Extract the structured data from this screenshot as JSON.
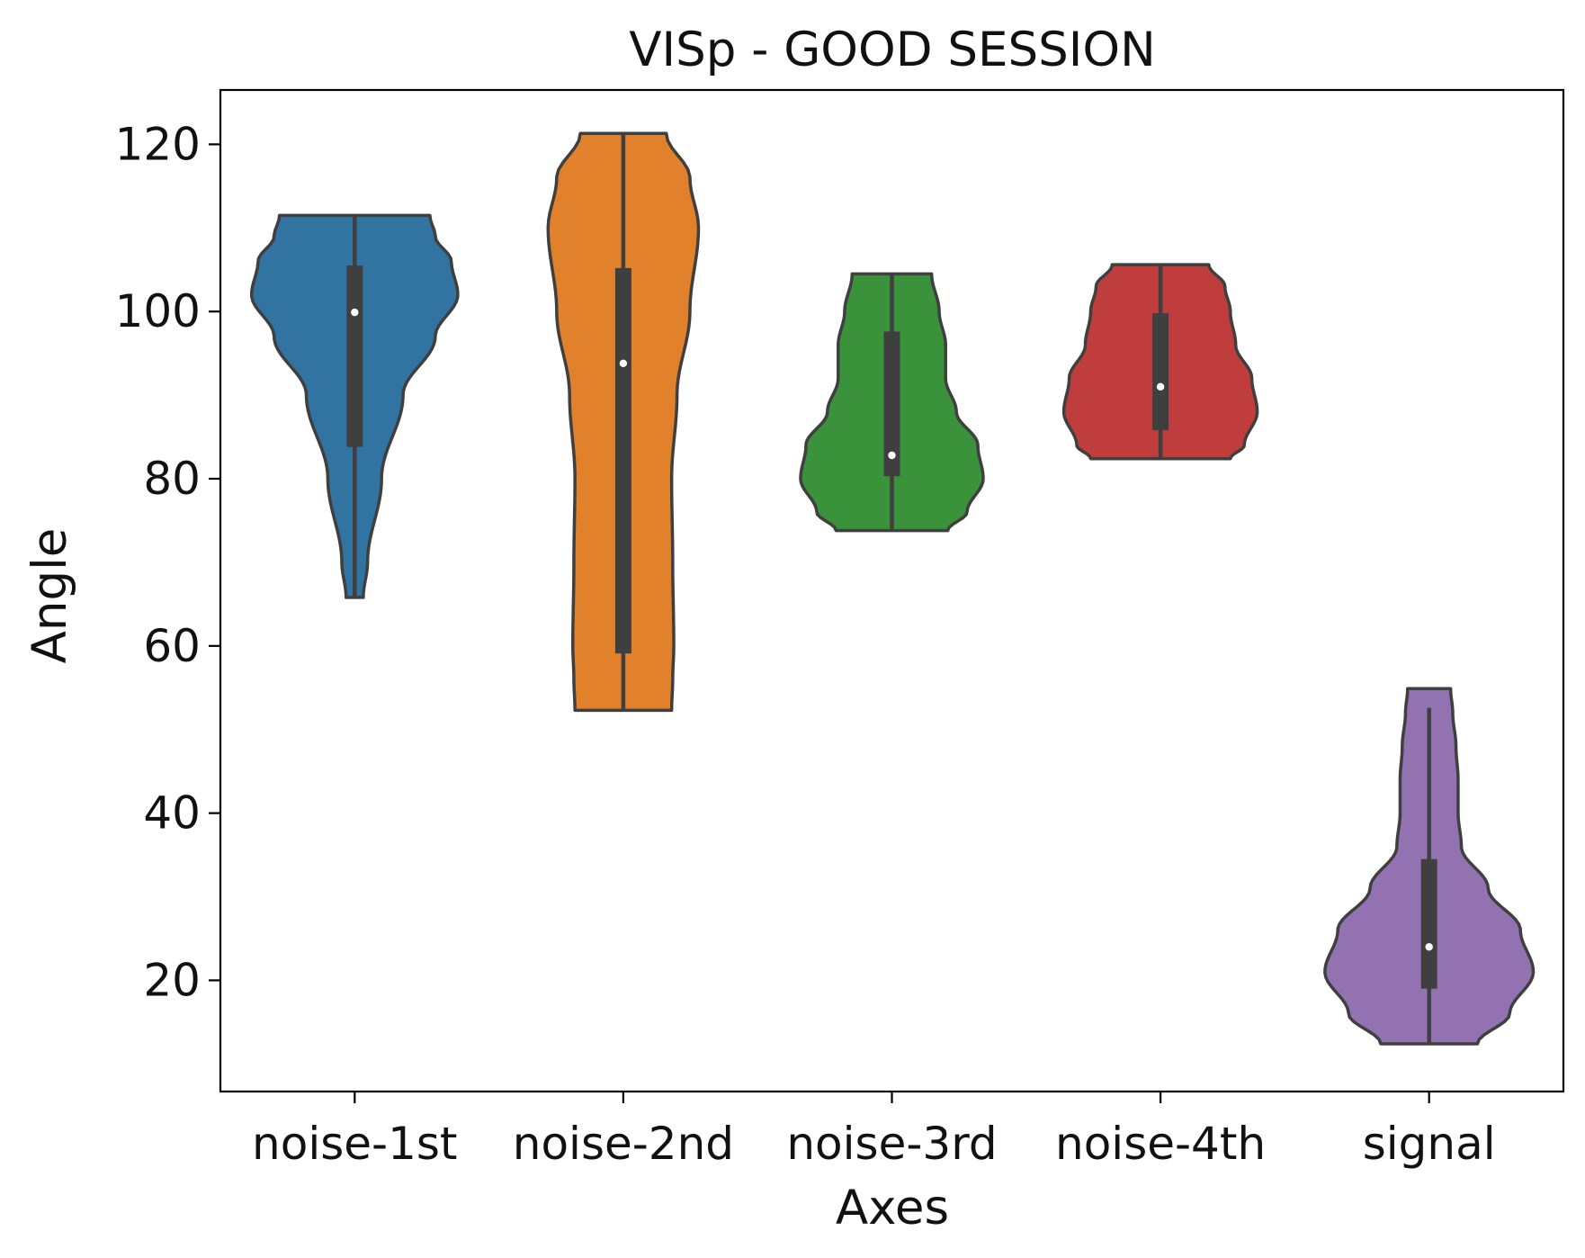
{
  "chart_data": {
    "type": "violin",
    "title": "VISp - GOOD SESSION",
    "xlabel": "Axes",
    "ylabel": "Angle",
    "ylim": [
      6.7,
      126.5
    ],
    "yticks": [
      20,
      40,
      60,
      80,
      100,
      120
    ],
    "grid": false,
    "categories": [
      "noise-1st",
      "noise-2nd",
      "noise-3rd",
      "noise-4th",
      "signal"
    ],
    "series": [
      {
        "category": "noise-1st",
        "color": "#3274a1",
        "min": 65.8,
        "max": 111.5,
        "q1": 83.8,
        "median": 99.9,
        "q3": 105.5,
        "whisker_low": 65.8,
        "whisker_high": 111.5,
        "density": [
          [
            65.8,
            0.08
          ],
          [
            70,
            0.12
          ],
          [
            80,
            0.25
          ],
          [
            90,
            0.45
          ],
          [
            97,
            0.75
          ],
          [
            102,
            0.96
          ],
          [
            106,
            0.9
          ],
          [
            109,
            0.75
          ],
          [
            111.5,
            0.7
          ]
        ]
      },
      {
        "category": "noise-2nd",
        "color": "#e1812c",
        "min": 52.3,
        "max": 121.3,
        "q1": 59.1,
        "median": 93.8,
        "q3": 105.2,
        "whisker_low": 52.3,
        "whisker_high": 121.3,
        "density": [
          [
            52.3,
            0.45
          ],
          [
            56,
            0.46
          ],
          [
            60,
            0.47
          ],
          [
            70,
            0.46
          ],
          [
            80,
            0.45
          ],
          [
            90,
            0.5
          ],
          [
            100,
            0.62
          ],
          [
            110,
            0.7
          ],
          [
            116,
            0.62
          ],
          [
            121.3,
            0.4
          ]
        ]
      },
      {
        "category": "noise-3rd",
        "color": "#3a923a",
        "min": 73.8,
        "max": 104.5,
        "q1": 80.3,
        "median": 82.8,
        "q3": 97.6,
        "whisker_low": 73.8,
        "whisker_high": 104.5,
        "density": [
          [
            73.8,
            0.52
          ],
          [
            76,
            0.7
          ],
          [
            80,
            0.85
          ],
          [
            84,
            0.8
          ],
          [
            88,
            0.6
          ],
          [
            92,
            0.5
          ],
          [
            96,
            0.5
          ],
          [
            100,
            0.44
          ],
          [
            104.5,
            0.37
          ]
        ]
      },
      {
        "category": "noise-4th",
        "color": "#c03d3e",
        "min": 82.4,
        "max": 105.6,
        "q1": 85.8,
        "median": 91.0,
        "q3": 99.8,
        "whisker_low": 82.4,
        "whisker_high": 105.6,
        "density": [
          [
            82.4,
            0.65
          ],
          [
            84,
            0.78
          ],
          [
            88,
            0.9
          ],
          [
            92,
            0.85
          ],
          [
            96,
            0.7
          ],
          [
            100,
            0.65
          ],
          [
            103,
            0.6
          ],
          [
            105.6,
            0.45
          ]
        ]
      },
      {
        "category": "signal",
        "color": "#9372b2",
        "min": 12.4,
        "max": 54.9,
        "q1": 19.0,
        "median": 24.0,
        "q3": 34.5,
        "whisker_low": 12.4,
        "whisker_high": 52.6,
        "density": [
          [
            12.4,
            0.45
          ],
          [
            16,
            0.75
          ],
          [
            21,
            0.97
          ],
          [
            26,
            0.85
          ],
          [
            31,
            0.55
          ],
          [
            36,
            0.3
          ],
          [
            40,
            0.27
          ],
          [
            44,
            0.27
          ],
          [
            48,
            0.25
          ],
          [
            52,
            0.22
          ],
          [
            54.9,
            0.2
          ]
        ]
      }
    ]
  }
}
